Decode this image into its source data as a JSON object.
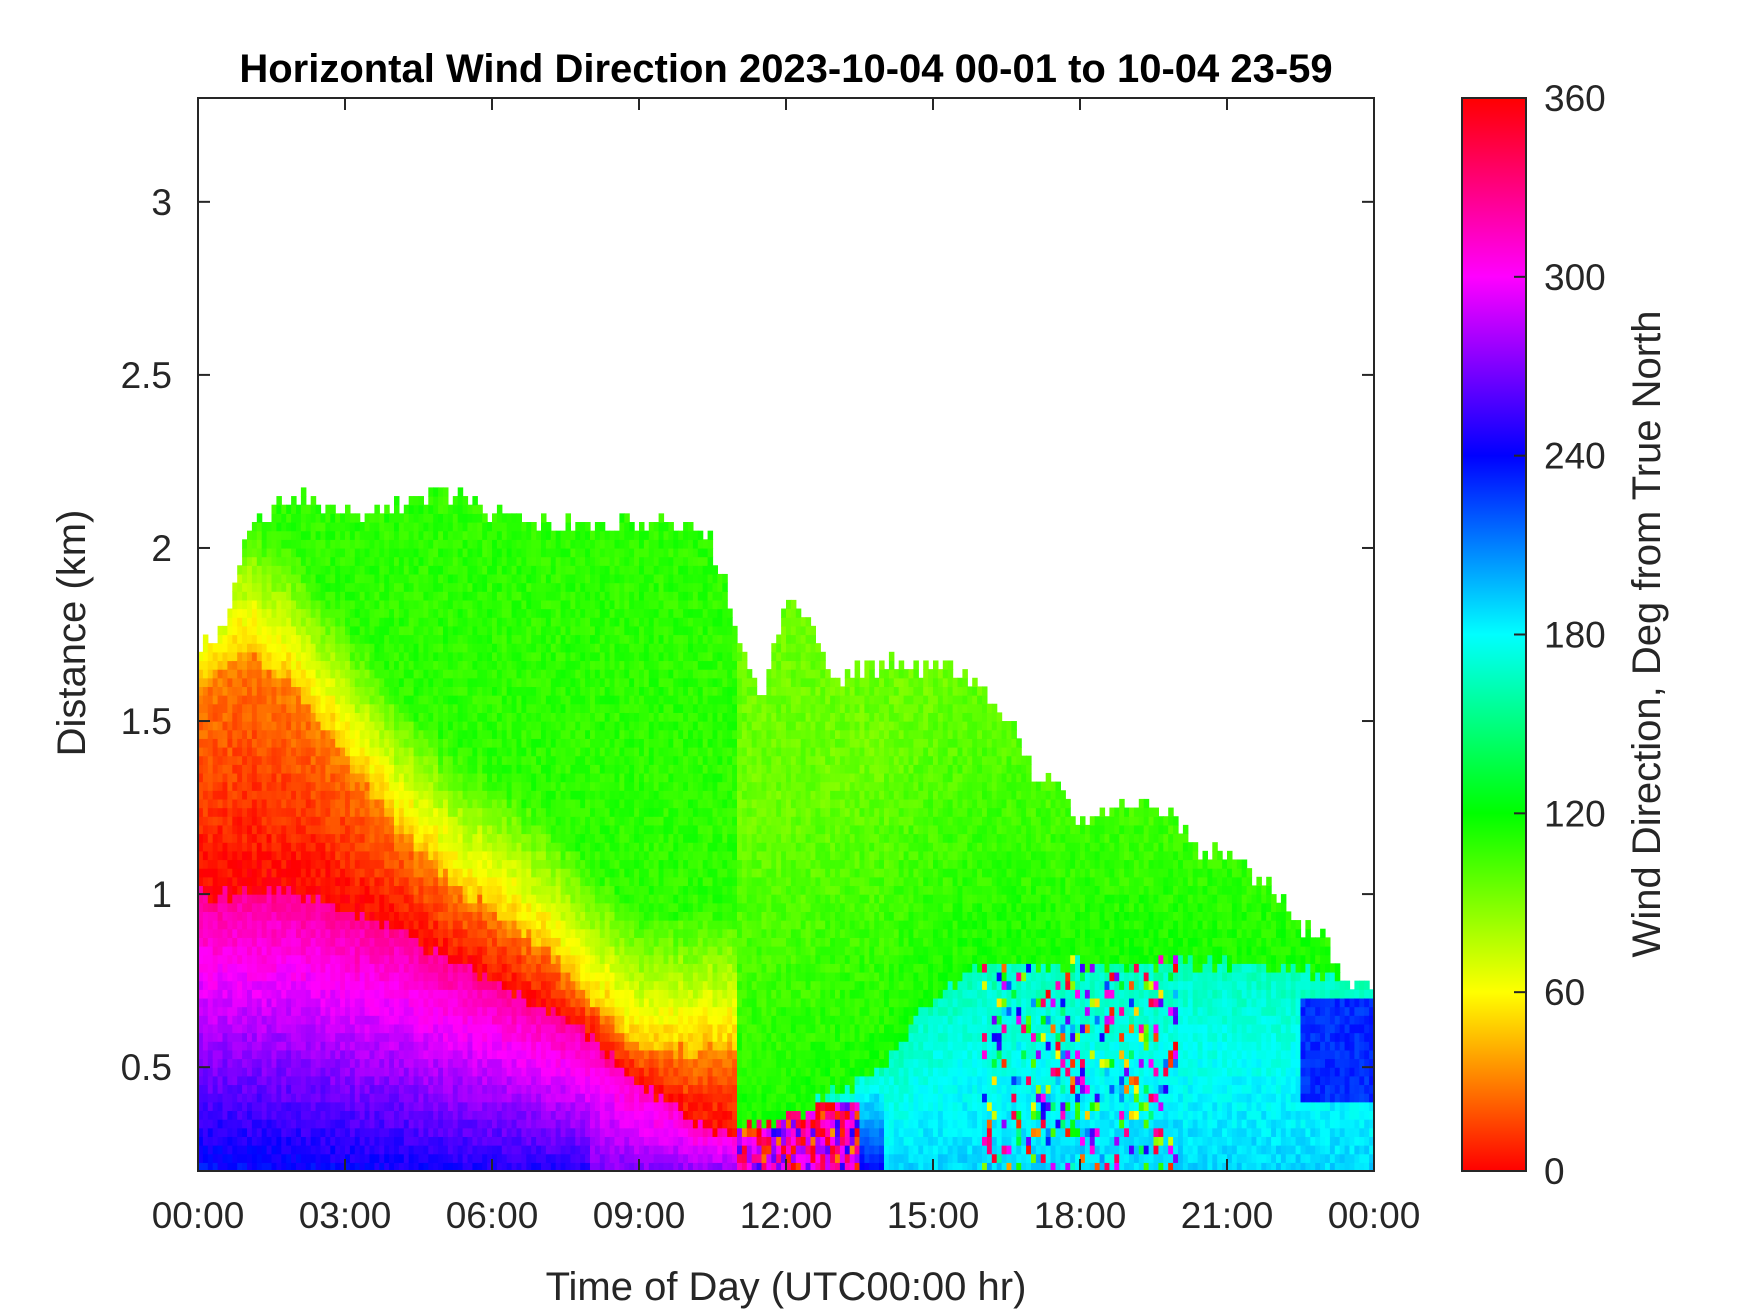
{
  "chart_data": {
    "type": "heatmap",
    "title": "Horizontal Wind Direction 2023-10-04 00-01 to 10-04 23-59",
    "xlabel": "Time of Day (UTC00:00 hr)",
    "ylabel": "Distance (km)",
    "colorbar_label": "Wind Direction, Deg from True North",
    "xlim": [
      0,
      24
    ],
    "ylim": [
      0.2,
      3.3
    ],
    "x_ticks": [
      0,
      3,
      6,
      9,
      12,
      15,
      18,
      21,
      24
    ],
    "x_tick_labels": [
      "00:00",
      "03:00",
      "06:00",
      "09:00",
      "12:00",
      "15:00",
      "18:00",
      "21:00",
      "00:00"
    ],
    "y_ticks": [
      0.5,
      1,
      1.5,
      2,
      2.5,
      3
    ],
    "y_tick_labels": [
      "0.5",
      "1",
      "1.5",
      "2",
      "2.5",
      "3"
    ],
    "colorbar_range": [
      0,
      360
    ],
    "colorbar_ticks": [
      0,
      60,
      120,
      180,
      240,
      300,
      360
    ],
    "colorbar_tick_labels": [
      "0",
      "60",
      "120",
      "180",
      "240",
      "300",
      "360"
    ],
    "colormap": "hsv (0 = red, 60 = yellow, 120 = green, 180 = cyan, 240 = blue, 300 = magenta, 360 = red)",
    "grid": false,
    "top_of_data_km": {
      "x_hours": [
        0,
        0.5,
        1.0,
        1.5,
        2.0,
        3.0,
        4.0,
        5.0,
        6.0,
        7.0,
        8.0,
        9.0,
        10.0,
        10.5,
        11.0,
        11.5,
        12.0,
        12.5,
        13.0,
        14.0,
        15.0,
        16.0,
        16.5,
        17.0,
        17.5,
        18.0,
        19.0,
        19.5,
        20.0,
        20.5,
        21.0,
        22.0,
        22.5,
        23.0,
        23.5,
        24.0
      ],
      "height_km": [
        1.7,
        1.75,
        2.05,
        2.1,
        2.15,
        2.1,
        2.1,
        2.15,
        2.1,
        2.05,
        2.05,
        2.05,
        2.08,
        2.0,
        1.75,
        1.55,
        1.85,
        1.75,
        1.6,
        1.65,
        1.65,
        1.6,
        1.5,
        1.35,
        1.3,
        1.2,
        1.25,
        1.25,
        1.2,
        1.1,
        1.1,
        1.0,
        0.9,
        0.85,
        0.73,
        0.73
      ]
    },
    "layers": [
      {
        "x_hours": [
          0,
          2,
          4,
          6,
          8,
          9,
          10,
          11
        ],
        "boundary_km": [
          1.0,
          1.0,
          0.9,
          0.75,
          0.6,
          0.45,
          0.35,
          0.3
        ],
        "below_deg": 330,
        "above_deg": 20
      },
      {
        "x_hours": [
          0,
          1,
          2,
          3,
          4,
          5,
          6,
          7,
          8,
          9
        ],
        "boundary_km": [
          1.6,
          1.7,
          1.6,
          1.4,
          1.2,
          1.05,
          0.95,
          0.85,
          0.7,
          0.55
        ],
        "below_deg": 25,
        "above_deg": 65
      },
      {
        "x_hours": [
          9,
          12,
          14,
          15,
          16,
          18,
          21,
          24
        ],
        "boundary_km": [
          0.3,
          0.35,
          0.5,
          0.7,
          0.8,
          0.8,
          0.8,
          0.75
        ],
        "below_deg": 175,
        "above_deg": 120
      }
    ],
    "regimes": [
      {
        "time_range_hours": [
          0,
          9
        ],
        "height_range_km": [
          0.2,
          0.8
        ],
        "direction_deg": [
          240,
          320
        ],
        "note": "blue–magenta low-level flow"
      },
      {
        "time_range_hours": [
          0,
          6
        ],
        "height_range_km": [
          0.7,
          1.2
        ],
        "direction_deg": [
          350,
          10
        ],
        "note": "red"
      },
      {
        "time_range_hours": [
          0,
          4
        ],
        "height_range_km": [
          1.2,
          1.7
        ],
        "direction_deg": [
          20,
          40
        ],
        "note": "orange"
      },
      {
        "time_range_hours": [
          1,
          17
        ],
        "height_range_km": [
          1.0,
          2.2
        ],
        "direction_deg": [
          80,
          130
        ],
        "note": "yellow-green to green aloft"
      },
      {
        "time_range_hours": [
          14,
          24
        ],
        "height_range_km": [
          0.2,
          0.7
        ],
        "direction_deg": [
          170,
          230
        ],
        "note": "cyan–blue with noisy speckle after 16:00"
      },
      {
        "time_range_hours": [
          22.5,
          24
        ],
        "height_range_km": [
          0.4,
          0.7
        ],
        "direction_deg": [
          220,
          240
        ],
        "note": "blue patch near surface"
      }
    ]
  }
}
